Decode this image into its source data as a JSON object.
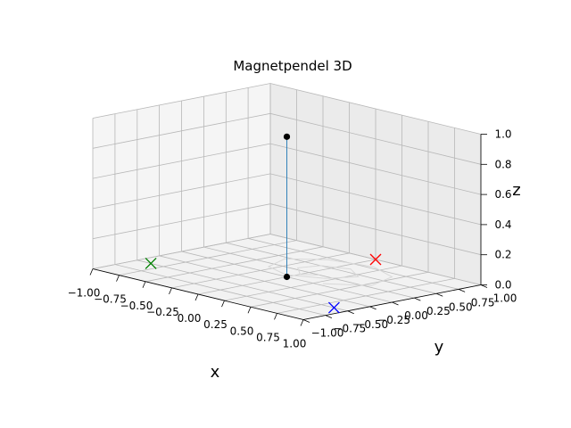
{
  "chart_data": {
    "type": "scatter",
    "title": "Magnetpendel 3D",
    "xlabel": "x",
    "ylabel": "y",
    "zlabel": "z",
    "xlim": [
      -1.0,
      1.0
    ],
    "ylim": [
      -1.0,
      1.0
    ],
    "zlim": [
      0.0,
      1.0
    ],
    "xticks": [
      "−1.00",
      "−0.75",
      "−0.50",
      "−0.25",
      "0.00",
      "0.25",
      "0.50",
      "0.75",
      "1.00"
    ],
    "yticks": [
      "−1.00",
      "−0.75",
      "−0.50",
      "−0.25",
      "0.00",
      "0.25",
      "0.50",
      "0.75",
      "1.00"
    ],
    "zticks": [
      "0.0",
      "0.2",
      "0.4",
      "0.6",
      "0.8",
      "1.0"
    ],
    "grid": true,
    "pendulum": {
      "anchor": {
        "x": 0.0,
        "y": 0.0,
        "z": 0.93
      },
      "bob": {
        "x": 0.0,
        "y": 0.0,
        "z": 0.0
      },
      "string_color": "#1f77b4",
      "point_color": "#000000"
    },
    "magnets": [
      {
        "x": -0.87,
        "y": -0.5,
        "z": 0.0,
        "color": "#008000"
      },
      {
        "x": 0.0,
        "y": 1.0,
        "z": 0.0,
        "color": "#ff0000"
      },
      {
        "x": 0.87,
        "y": -0.5,
        "z": 0.0,
        "color": "#0000ff"
      }
    ],
    "trajectory": {
      "color": "#d8d8d8",
      "points": [
        [
          0.3,
          0.05
        ],
        [
          0.55,
          0.3
        ],
        [
          0.45,
          0.65
        ],
        [
          0.15,
          0.8
        ],
        [
          -0.2,
          0.7
        ],
        [
          -0.4,
          0.45
        ],
        [
          -0.3,
          0.15
        ],
        [
          -0.05,
          0.05
        ],
        [
          0.2,
          0.2
        ],
        [
          0.3,
          0.45
        ],
        [
          0.1,
          0.6
        ],
        [
          -0.1,
          0.5
        ],
        [
          -0.15,
          0.3
        ],
        [
          0.0,
          0.15
        ],
        [
          0.1,
          0.25
        ]
      ]
    }
  }
}
